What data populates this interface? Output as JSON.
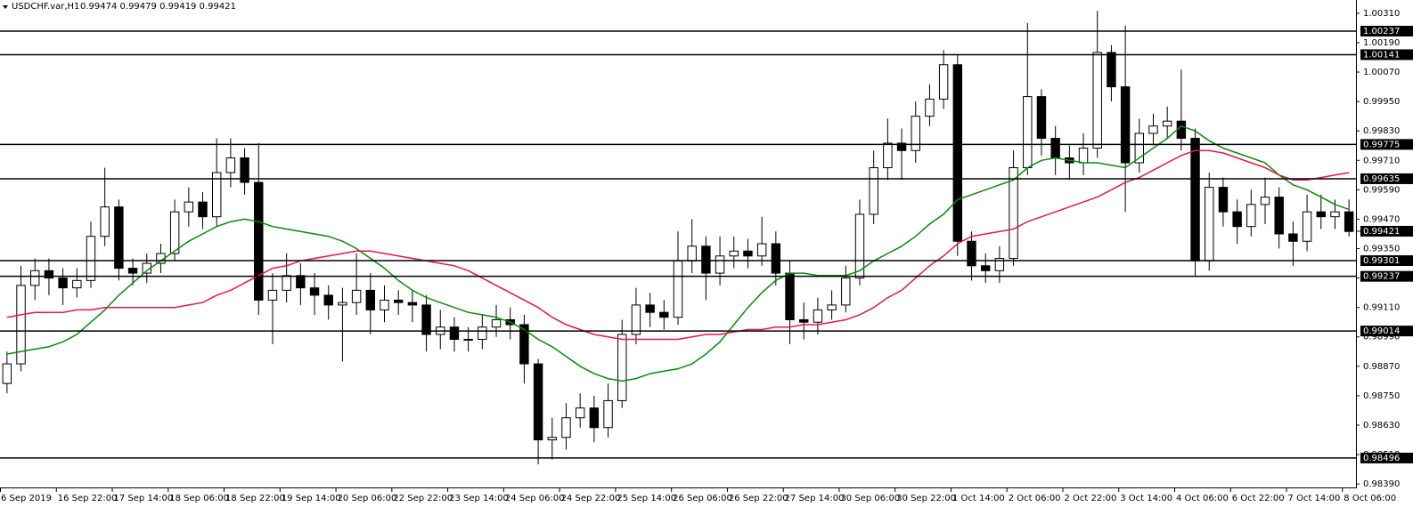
{
  "chart_data": {
    "type": "candlestick",
    "title": "USDCHF.var,H1",
    "subtitle": "0.99474 0.99479 0.99419 0.99421",
    "categories": [
      "6 Sep 2019",
      null,
      null,
      null,
      "16 Sep 22:00",
      null,
      null,
      null,
      "17 Sep 14:00",
      null,
      null,
      null,
      "18 Sep 06:00",
      null,
      null,
      null,
      "18 Sep 22:00",
      null,
      null,
      null,
      "19 Sep 14:00",
      null,
      null,
      null,
      "20 Sep 06:00",
      null,
      null,
      null,
      "22 Sep 22:00",
      null,
      null,
      null,
      "23 Sep 14:00",
      null,
      null,
      null,
      "24 Sep 06:00",
      null,
      null,
      null,
      "24 Sep 22:00",
      null,
      null,
      null,
      "25 Sep 14:00",
      null,
      null,
      null,
      "26 Sep 06:00",
      null,
      null,
      null,
      "26 Sep 22:00",
      null,
      null,
      null,
      "27 Sep 14:00",
      null,
      null,
      null,
      "30 Sep 06:00",
      null,
      null,
      null,
      "30 Sep 22:00",
      null,
      null,
      null,
      "1 Oct 14:00",
      null,
      null,
      null,
      "2 Oct 06:00",
      null,
      null,
      null,
      "2 Oct 22:00",
      null,
      null,
      null,
      "3 Oct 14:00",
      null,
      null,
      null,
      "4 Oct 06:00",
      null,
      null,
      null,
      "6 Oct 22:00",
      null,
      null,
      null,
      "7 Oct 14:00",
      null,
      null,
      null,
      "8 Oct 06:00"
    ],
    "open": [
      0.988,
      0.9888,
      0.992,
      0.9926,
      0.9923,
      0.9919,
      0.9922,
      0.994,
      0.9952,
      0.9927,
      0.9925,
      0.9929,
      0.9933,
      0.995,
      0.9954,
      0.9948,
      0.9966,
      0.9972,
      0.9962,
      0.9914,
      0.9918,
      0.9924,
      0.9919,
      0.9916,
      0.9912,
      0.9913,
      0.9918,
      0.991,
      0.9914,
      0.9913,
      0.9912,
      0.99,
      0.9903,
      0.9898,
      0.9898,
      0.9903,
      0.9906,
      0.9904,
      0.9888,
      0.9857,
      0.9858,
      0.9866,
      0.987,
      0.9862,
      0.9873,
      0.99,
      0.9912,
      0.9909,
      0.9907,
      0.993,
      0.9936,
      0.9925,
      0.9932,
      0.9934,
      0.9932,
      0.9937,
      0.9925,
      0.9906,
      0.9905,
      0.991,
      0.9912,
      0.9923,
      0.9949,
      0.9968,
      0.9978,
      0.9975,
      0.9989,
      0.9996,
      1.001,
      0.9938,
      0.9928,
      0.9926,
      0.9931,
      0.9968,
      0.9997,
      0.998,
      0.9972,
      0.997,
      0.9976,
      1.0015,
      1.0001,
      0.997,
      0.9982,
      0.9985,
      0.9987,
      0.998,
      0.993,
      0.996,
      0.995,
      0.9944,
      0.9953,
      0.9956,
      0.9941,
      0.9938,
      0.995,
      0.9948,
      0.995
    ],
    "high": [
      0.9893,
      0.9928,
      0.9931,
      0.9931,
      0.9927,
      0.9927,
      0.9946,
      0.9968,
      0.9955,
      0.9931,
      0.9933,
      0.9937,
      0.9955,
      0.996,
      0.9958,
      0.998,
      0.998,
      0.9976,
      0.9978,
      0.9925,
      0.9933,
      0.9929,
      0.9925,
      0.992,
      0.9919,
      0.9933,
      0.9925,
      0.992,
      0.9918,
      0.9918,
      0.9916,
      0.991,
      0.9907,
      0.9903,
      0.9908,
      0.9912,
      0.9911,
      0.9908,
      0.989,
      0.9866,
      0.9872,
      0.9876,
      0.9875,
      0.988,
      0.9906,
      0.9919,
      0.9917,
      0.9914,
      0.9942,
      0.9947,
      0.994,
      0.994,
      0.994,
      0.9939,
      0.9948,
      0.9942,
      0.993,
      0.9913,
      0.9915,
      0.9918,
      0.9928,
      0.9955,
      0.9975,
      0.9988,
      0.9984,
      0.9995,
      1.0002,
      1.0016,
      1.0014,
      0.9942,
      0.9933,
      0.9936,
      0.9975,
      1.0027,
      1.0,
      0.9985,
      0.9977,
      0.9982,
      1.0032,
      1.0018,
      1.0026,
      0.9988,
      0.999,
      0.9993,
      1.0008,
      0.9984,
      0.9966,
      0.9964,
      0.9955,
      0.9959,
      0.9964,
      0.996,
      0.9946,
      0.9957,
      0.9957,
      0.9955,
      0.9955
    ],
    "low": [
      0.9876,
      0.9885,
      0.9914,
      0.9916,
      0.9912,
      0.9915,
      0.9919,
      0.9936,
      0.9922,
      0.992,
      0.9921,
      0.9925,
      0.993,
      0.9944,
      0.9943,
      0.9944,
      0.996,
      0.9957,
      0.9908,
      0.9896,
      0.9913,
      0.9912,
      0.9908,
      0.9906,
      0.9889,
      0.9908,
      0.99,
      0.9905,
      0.9908,
      0.9905,
      0.9893,
      0.9894,
      0.9893,
      0.9893,
      0.9894,
      0.9899,
      0.9898,
      0.988,
      0.9847,
      0.9849,
      0.9853,
      0.9862,
      0.9856,
      0.9858,
      0.987,
      0.9896,
      0.9903,
      0.9902,
      0.9904,
      0.9925,
      0.9914,
      0.992,
      0.9927,
      0.9927,
      0.9928,
      0.992,
      0.9896,
      0.9898,
      0.99,
      0.9906,
      0.9909,
      0.992,
      0.9945,
      0.9963,
      0.9963,
      0.997,
      0.9985,
      0.9992,
      0.9932,
      0.9922,
      0.9921,
      0.9921,
      0.9928,
      0.9965,
      0.9973,
      0.9965,
      0.9963,
      0.9965,
      0.9972,
      0.9995,
      0.995,
      0.9966,
      0.9977,
      0.998,
      0.9975,
      0.9924,
      0.9926,
      0.9944,
      0.9937,
      0.994,
      0.9945,
      0.9935,
      0.9928,
      0.9934,
      0.9943,
      0.9943,
      0.994
    ],
    "close": [
      0.9888,
      0.992,
      0.9926,
      0.9923,
      0.9919,
      0.9922,
      0.994,
      0.9952,
      0.9927,
      0.9925,
      0.9929,
      0.9933,
      0.995,
      0.9954,
      0.9948,
      0.9966,
      0.9972,
      0.9962,
      0.9914,
      0.9918,
      0.9924,
      0.9919,
      0.9916,
      0.9912,
      0.9913,
      0.9918,
      0.991,
      0.9914,
      0.9913,
      0.9912,
      0.99,
      0.9903,
      0.9898,
      0.9898,
      0.9903,
      0.9906,
      0.9904,
      0.9888,
      0.9857,
      0.9858,
      0.9866,
      0.987,
      0.9862,
      0.9873,
      0.99,
      0.9912,
      0.9909,
      0.9907,
      0.993,
      0.9936,
      0.9925,
      0.9932,
      0.9934,
      0.9932,
      0.9937,
      0.9925,
      0.9906,
      0.9905,
      0.991,
      0.9912,
      0.9923,
      0.9949,
      0.9968,
      0.9978,
      0.9975,
      0.9989,
      0.9996,
      1.001,
      0.9938,
      0.9928,
      0.9926,
      0.9931,
      0.9968,
      0.9997,
      0.998,
      0.9972,
      0.997,
      0.9976,
      1.0015,
      1.0001,
      0.997,
      0.9982,
      0.9985,
      0.9987,
      0.998,
      0.993,
      0.996,
      0.995,
      0.9944,
      0.9953,
      0.9956,
      0.9941,
      0.9938,
      0.995,
      0.9948,
      0.995,
      0.9942
    ],
    "up_color": "#ffffff",
    "down_color": "#000000",
    "wick_color": "#000000",
    "series": [
      {
        "color": "#0a8a0a",
        "values": [
          0.9892,
          0.9893,
          0.9894,
          0.9895,
          0.9897,
          0.99,
          0.9905,
          0.991,
          0.9916,
          0.9921,
          0.9926,
          0.993,
          0.9934,
          0.9938,
          0.9941,
          0.9944,
          0.9946,
          0.9947,
          0.9946,
          0.9944,
          0.9943,
          0.9942,
          0.9941,
          0.994,
          0.9938,
          0.9935,
          0.9931,
          0.9927,
          0.9922,
          0.9918,
          0.9915,
          0.9913,
          0.9911,
          0.9909,
          0.9908,
          0.9907,
          0.9905,
          0.9902,
          0.9898,
          0.9895,
          0.9891,
          0.9887,
          0.9884,
          0.9882,
          0.9881,
          0.9882,
          0.9884,
          0.9885,
          0.9886,
          0.9888,
          0.9892,
          0.9897,
          0.9904,
          0.9911,
          0.9917,
          0.9922,
          0.9925,
          0.9925,
          0.9924,
          0.9924,
          0.9924,
          0.9926,
          0.993,
          0.9933,
          0.9936,
          0.994,
          0.9945,
          0.9949,
          0.9955,
          0.9957,
          0.9959,
          0.9961,
          0.9963,
          0.9968,
          0.9971,
          0.9972,
          0.9971,
          0.997,
          0.997,
          0.9969,
          0.9968,
          0.9972,
          0.9976,
          0.998,
          0.9985,
          0.9983,
          0.9979,
          0.9976,
          0.9974,
          0.9972,
          0.997,
          0.9965,
          0.9961,
          0.9959,
          0.9956,
          0.9953,
          0.9951
        ]
      },
      {
        "color": "#e8174a",
        "values": [
          0.9907,
          0.9908,
          0.9909,
          0.9909,
          0.9909,
          0.991,
          0.991,
          0.9911,
          0.9911,
          0.9911,
          0.9911,
          0.9911,
          0.9911,
          0.9912,
          0.9913,
          0.9916,
          0.9918,
          0.9921,
          0.9924,
          0.9927,
          0.9928,
          0.993,
          0.9931,
          0.9932,
          0.9933,
          0.9934,
          0.9934,
          0.9933,
          0.9932,
          0.9931,
          0.993,
          0.9929,
          0.9928,
          0.9926,
          0.9923,
          0.992,
          0.9917,
          0.9914,
          0.9911,
          0.9907,
          0.9904,
          0.9902,
          0.99,
          0.9899,
          0.9898,
          0.9898,
          0.9898,
          0.9898,
          0.9898,
          0.9899,
          0.99,
          0.99,
          0.9901,
          0.9902,
          0.9902,
          0.9903,
          0.9903,
          0.9904,
          0.9904,
          0.9905,
          0.9906,
          0.9908,
          0.9911,
          0.9915,
          0.9918,
          0.9923,
          0.9928,
          0.9932,
          0.9937,
          0.994,
          0.9941,
          0.9942,
          0.9943,
          0.9946,
          0.9948,
          0.995,
          0.9952,
          0.9954,
          0.9956,
          0.9959,
          0.9962,
          0.9964,
          0.9967,
          0.997,
          0.9973,
          0.9975,
          0.9975,
          0.9974,
          0.9972,
          0.997,
          0.9968,
          0.9965,
          0.9963,
          0.9963,
          0.9964,
          0.9965,
          0.9966
        ]
      }
    ],
    "ylim": [
      0.98376,
      1.00364
    ],
    "yticks": [
      {
        "value": 1.0031,
        "label": "1.00310"
      },
      {
        "value": 1.0019,
        "label": "1.00190"
      },
      {
        "value": 1.0007,
        "label": "1.00070"
      },
      {
        "value": 0.9995,
        "label": "0.99950"
      },
      {
        "value": 0.9983,
        "label": "0.99830"
      },
      {
        "value": 0.9971,
        "label": "0.99710"
      },
      {
        "value": 0.9959,
        "label": "0.99590"
      },
      {
        "value": 0.9947,
        "label": "0.99470"
      },
      {
        "value": 0.9935,
        "label": "0.99350"
      },
      {
        "value": 0.9923,
        "label": "0.99230"
      },
      {
        "value": 0.9911,
        "label": "0.99110"
      },
      {
        "value": 0.9899,
        "label": "0.98990"
      },
      {
        "value": 0.9887,
        "label": "0.98870"
      },
      {
        "value": 0.9875,
        "label": "0.98750"
      },
      {
        "value": 0.9863,
        "label": "0.98630"
      },
      {
        "value": 0.9851,
        "label": "0.98510"
      },
      {
        "value": 0.9839,
        "label": "0.98390"
      }
    ],
    "levels": [
      1.00237,
      1.00141,
      0.99775,
      0.99635,
      0.99301,
      0.99237,
      0.99014,
      0.98496
    ],
    "last_price": 0.99421,
    "grid": false
  }
}
